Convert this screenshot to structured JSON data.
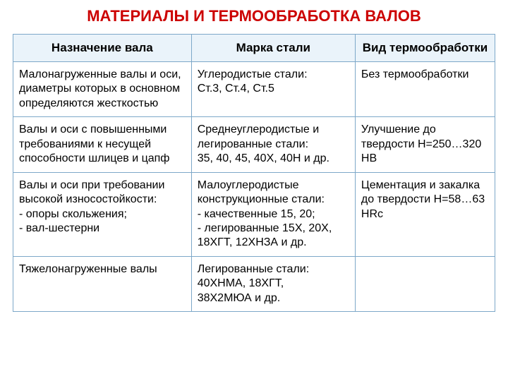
{
  "title": "МАТЕРИАЛЫ И ТЕРМООБРАБОТКА ВАЛОВ",
  "colors": {
    "title": "#cc0000",
    "header_bg": "#eaf3fa",
    "row_bg": "#ffffff",
    "border": "#7da8c9",
    "text": "#000000"
  },
  "fonts": {
    "title_size": 22,
    "header_size": 17,
    "cell_size": 16
  },
  "col_widths": [
    "37%",
    "34%",
    "29%"
  ],
  "columns": [
    "Назначение вала",
    "Марка стали",
    "Вид термообработки"
  ],
  "rows": [
    {
      "c0": "Малонагруженные валы и оси, диаметры которых в основном определяются жесткостью",
      "c1": "Углеродистые стали:\nСт.3, Ст.4, Ст.5",
      "c2": "Без термообработки"
    },
    {
      "c0": "Валы и оси с повышенными требованиями к несущей способности шлицев и цапф",
      "c1": "Среднеуглеродистые и легированные стали:\n35, 40, 45, 40Х, 40Н и др.",
      "c2": "Улучшение до твердости Н=250…320 НВ"
    },
    {
      "c0": "Валы и оси при требовании высокой износостойкости:\n- опоры скольжения;\n- вал-шестерни",
      "c1": "Малоуглеродистые конструкционные стали:\n- качественные 15, 20;\n- легированные 15Х, 20Х, 18ХГТ, 12ХНЗА и др.",
      "c2": "Цементация и закалка до твердости Н=58…63 HRc"
    },
    {
      "c0": "Тяжелонагруженные валы",
      "c1": "Легированные стали:\n40ХНМА, 18ХГТ,\n38Х2МЮА и др.",
      "c2": ""
    }
  ]
}
